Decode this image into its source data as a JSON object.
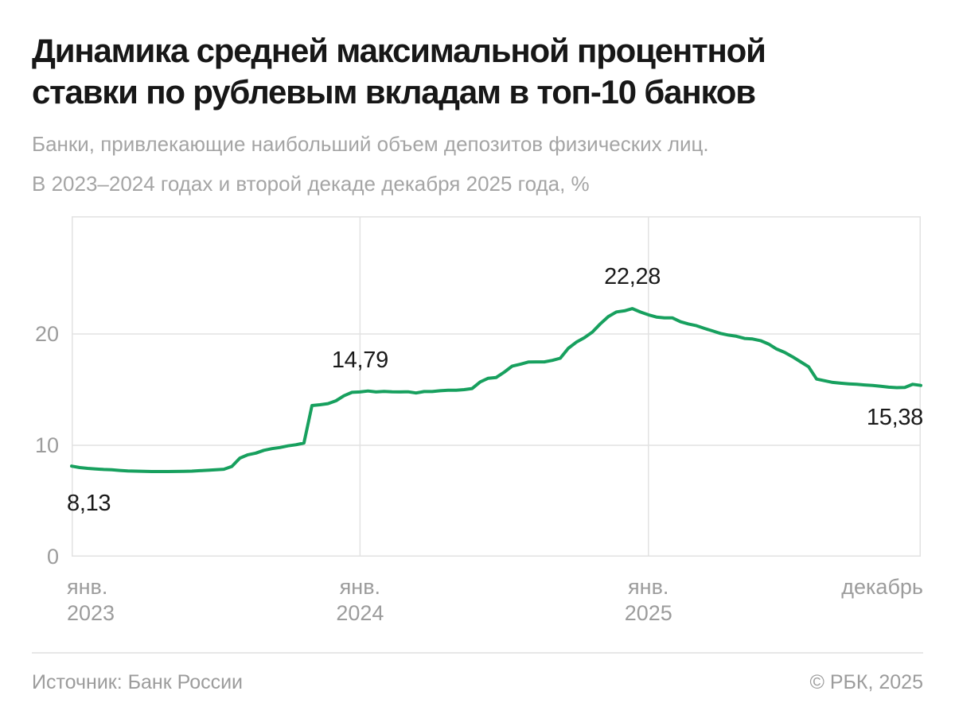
{
  "header": {
    "title_line1": "Динамика средней максимальной процентной",
    "title_line2": "ставки по рублевым вкладам в топ-10 банков",
    "subtitle_line1": "Банки, привлекающие наибольший объем депозитов физических лиц.",
    "subtitle_line2": "В 2023–2024 годах и второй декаде декабря 2025 года, %"
  },
  "footer": {
    "source": "Источник: Банк России",
    "copyright": "© РБК, 2025"
  },
  "chart_data": {
    "type": "line",
    "title": "Динамика средней максимальной процентной ставки по рублевым вкладам в топ-10 банков, %",
    "xlabel": "",
    "ylabel": "%",
    "legend": "off",
    "grid": "on",
    "line_color": "#17a05e",
    "grid_color": "#e2e2e2",
    "tick_text_color": "#9c9c9c",
    "label_text_color": "#1a1a1a",
    "ylim": [
      0,
      30.57
    ],
    "y_ticks": [
      0,
      10,
      20
    ],
    "x_total_months": 35.3333,
    "points_per_month": 3,
    "x_unit": "декада (треть месяца), начиная с первой декады января 2023",
    "x_ticks": [
      {
        "month": "янв.",
        "year": "2023",
        "month_index": 0,
        "align": "left"
      },
      {
        "month": "янв.",
        "year": "2024",
        "month_index": 12,
        "align": "center"
      },
      {
        "month": "янв.",
        "year": "2025",
        "month_index": 24,
        "align": "center"
      },
      {
        "month": "декабрь",
        "year": "",
        "month_index": 35.3333,
        "align": "right"
      }
    ],
    "values": [
      8.13,
      8.0,
      7.93,
      7.88,
      7.83,
      7.8,
      7.74,
      7.7,
      7.68,
      7.66,
      7.64,
      7.64,
      7.64,
      7.65,
      7.66,
      7.68,
      7.72,
      7.76,
      7.8,
      7.85,
      8.1,
      8.85,
      9.15,
      9.3,
      9.55,
      9.7,
      9.8,
      9.95,
      10.05,
      10.2,
      13.57,
      13.64,
      13.74,
      14.0,
      14.45,
      14.76,
      14.79,
      14.88,
      14.79,
      14.84,
      14.8,
      14.79,
      14.81,
      14.7,
      14.83,
      14.83,
      14.9,
      14.95,
      14.95,
      15.0,
      15.1,
      15.69,
      16.02,
      16.09,
      16.57,
      17.11,
      17.28,
      17.48,
      17.49,
      17.49,
      17.63,
      17.82,
      18.71,
      19.26,
      19.66,
      20.17,
      20.91,
      21.56,
      21.98,
      22.08,
      22.28,
      21.97,
      21.72,
      21.52,
      21.44,
      21.44,
      21.1,
      20.9,
      20.74,
      20.5,
      20.28,
      20.05,
      19.9,
      19.79,
      19.6,
      19.55,
      19.4,
      19.1,
      18.65,
      18.35,
      17.95,
      17.5,
      17.05,
      15.95,
      15.8,
      15.65,
      15.58,
      15.52,
      15.48,
      15.42,
      15.38,
      15.3,
      15.22,
      15.18,
      15.2,
      15.48,
      15.38
    ],
    "annotations": [
      {
        "index": 0,
        "value": 8.13,
        "label": "8,13",
        "placement": "below-left"
      },
      {
        "index": 36,
        "value": 14.79,
        "label": "14,79",
        "placement": "above"
      },
      {
        "index": 70,
        "value": 22.28,
        "label": "22,28",
        "placement": "above"
      },
      {
        "index": 106,
        "value": 15.38,
        "label": "15,38",
        "placement": "below-right"
      }
    ]
  }
}
